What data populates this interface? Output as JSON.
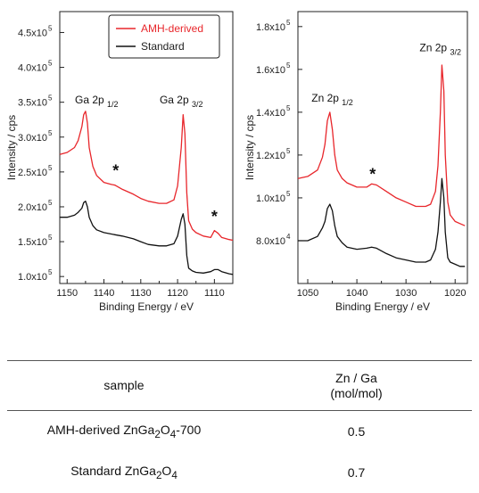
{
  "charts": [
    {
      "type": "line",
      "xlabel": "Binding Energy / eV",
      "ylabel": "Intensity / cps",
      "xlim": [
        1152,
        1105
      ],
      "ylim": [
        0.9,
        4.8
      ],
      "x_ticks": [
        1150,
        1140,
        1130,
        1120,
        1110
      ],
      "y_ticks": [
        1.0,
        1.5,
        2.0,
        2.5,
        3.0,
        3.5,
        4.0,
        4.5
      ],
      "y_tick_labels": [
        {
          "mant": "1.0x10",
          "exp": "5"
        },
        {
          "mant": "1.5x10",
          "exp": "5"
        },
        {
          "mant": "2.0x10",
          "exp": "5"
        },
        {
          "mant": "2.5x10",
          "exp": "5"
        },
        {
          "mant": "3.0x10",
          "exp": "5"
        },
        {
          "mant": "3.5x10",
          "exp": "5"
        },
        {
          "mant": "4.0x10",
          "exp": "5"
        },
        {
          "mant": "4.5x10",
          "exp": "5"
        }
      ],
      "y_scale_note": "y values in units of 1e5 cps",
      "legend": {
        "position": "top-center",
        "entries": [
          {
            "label": "AMH-derived",
            "color": "#e8262b"
          },
          {
            "label": "Standard",
            "color": "#111111"
          }
        ]
      },
      "series": [
        {
          "name": "AMH-derived",
          "color": "#e8262b",
          "x": [
            1152,
            1150,
            1148,
            1147,
            1146,
            1145.5,
            1145,
            1144.5,
            1144,
            1143,
            1142,
            1140,
            1138,
            1137,
            1135,
            1132,
            1130,
            1128,
            1125,
            1123,
            1121,
            1120,
            1119,
            1118.5,
            1118,
            1117.5,
            1117,
            1116,
            1115,
            1113,
            1111,
            1110,
            1109,
            1108,
            1106,
            1105
          ],
          "y": [
            2.75,
            2.78,
            2.85,
            2.95,
            3.15,
            3.32,
            3.37,
            3.2,
            2.85,
            2.58,
            2.45,
            2.35,
            2.32,
            2.31,
            2.25,
            2.18,
            2.12,
            2.08,
            2.05,
            2.05,
            2.1,
            2.3,
            2.85,
            3.32,
            3.05,
            2.2,
            1.8,
            1.68,
            1.63,
            1.58,
            1.56,
            1.66,
            1.62,
            1.56,
            1.53,
            1.52
          ]
        },
        {
          "name": "Standard",
          "color": "#111111",
          "x": [
            1152,
            1150,
            1148,
            1147,
            1146,
            1145.5,
            1145,
            1144.5,
            1144,
            1143,
            1142,
            1140,
            1138,
            1137,
            1135,
            1132,
            1130,
            1128,
            1125,
            1123,
            1121,
            1120,
            1119,
            1118.5,
            1118,
            1117.5,
            1117,
            1116,
            1115,
            1113,
            1111,
            1110,
            1109,
            1108,
            1106,
            1105
          ],
          "y": [
            1.85,
            1.85,
            1.88,
            1.92,
            1.98,
            2.06,
            2.08,
            2.0,
            1.85,
            1.73,
            1.67,
            1.63,
            1.61,
            1.6,
            1.58,
            1.54,
            1.5,
            1.46,
            1.44,
            1.44,
            1.47,
            1.58,
            1.82,
            1.9,
            1.75,
            1.3,
            1.12,
            1.08,
            1.06,
            1.05,
            1.07,
            1.1,
            1.1,
            1.07,
            1.04,
            1.03
          ]
        }
      ],
      "annotations": [
        {
          "text": "Ga 2p",
          "sub": "1/2",
          "x": 1142,
          "y": 3.48
        },
        {
          "text": "Ga 2p",
          "sub": "3/2",
          "x": 1119,
          "y": 3.48
        },
        {
          "text": "*",
          "x": 1136.8,
          "y": 2.44
        },
        {
          "text": "*",
          "x": 1110,
          "y": 1.78
        }
      ]
    },
    {
      "type": "line",
      "xlabel": "Binding Energy / eV",
      "ylabel": "Intensity / cps",
      "xlim": [
        1052,
        1017.5
      ],
      "ylim": [
        0.6,
        1.87
      ],
      "x_ticks": [
        1050,
        1040,
        1030,
        1020
      ],
      "y_ticks": [
        0.8,
        1.0,
        1.2,
        1.4,
        1.6,
        1.8
      ],
      "y_tick_labels": [
        {
          "mant": "8.0x10",
          "exp": "4"
        },
        {
          "mant": "1.0x10",
          "exp": "5"
        },
        {
          "mant": "1.2x10",
          "exp": "5"
        },
        {
          "mant": "1.4x10",
          "exp": "5"
        },
        {
          "mant": "1.6x10",
          "exp": "5"
        },
        {
          "mant": "1.8x10",
          "exp": "5"
        }
      ],
      "y_scale_note": "y values in units of 1e5 cps",
      "series": [
        {
          "name": "AMH-derived",
          "color": "#e8262b",
          "x": [
            1052,
            1050,
            1048,
            1047,
            1046.5,
            1046,
            1045.5,
            1045,
            1044.5,
            1044,
            1043,
            1042,
            1040,
            1038,
            1037,
            1036,
            1034,
            1032,
            1030,
            1028,
            1026,
            1025,
            1024,
            1023.5,
            1023,
            1022.7,
            1022.3,
            1022,
            1021.5,
            1021,
            1020,
            1019,
            1018
          ],
          "y": [
            1.09,
            1.1,
            1.13,
            1.19,
            1.25,
            1.36,
            1.4,
            1.32,
            1.2,
            1.13,
            1.09,
            1.07,
            1.05,
            1.05,
            1.065,
            1.06,
            1.03,
            1.0,
            0.98,
            0.96,
            0.96,
            0.97,
            1.03,
            1.15,
            1.4,
            1.62,
            1.5,
            1.2,
            0.98,
            0.92,
            0.89,
            0.88,
            0.87
          ]
        },
        {
          "name": "Standard",
          "color": "#111111",
          "x": [
            1052,
            1050,
            1048,
            1047,
            1046.5,
            1046,
            1045.5,
            1045,
            1044.5,
            1044,
            1043,
            1042,
            1040,
            1038,
            1037,
            1036,
            1034,
            1032,
            1030,
            1028,
            1026,
            1025,
            1024,
            1023.5,
            1023,
            1022.7,
            1022.3,
            1022,
            1021.5,
            1021,
            1020,
            1019,
            1018
          ],
          "y": [
            0.8,
            0.8,
            0.82,
            0.86,
            0.89,
            0.95,
            0.97,
            0.94,
            0.87,
            0.82,
            0.79,
            0.77,
            0.76,
            0.765,
            0.77,
            0.765,
            0.74,
            0.72,
            0.71,
            0.7,
            0.7,
            0.71,
            0.76,
            0.84,
            0.98,
            1.09,
            1.0,
            0.84,
            0.72,
            0.7,
            0.69,
            0.68,
            0.68
          ]
        }
      ],
      "annotations": [
        {
          "text": "Zn 2p",
          "sub": "1/2",
          "x": 1045,
          "y": 1.45
        },
        {
          "text": "Zn 2p",
          "sub": "3/2",
          "x": 1023,
          "y": 1.685
        },
        {
          "text": "*",
          "x": 1036.8,
          "y": 1.085
        }
      ]
    }
  ],
  "table": {
    "header_sample": "sample",
    "header_ratio_line1": "Zn / Ga",
    "header_ratio_line2": "(mol/mol)",
    "rows": [
      {
        "sample_pre": "AMH-derived ZnGa",
        "sub1": "2",
        "mid": "O",
        "sub2": "4",
        "post": "-700",
        "ratio": "0.5"
      },
      {
        "sample_pre": "Standard ZnGa",
        "sub1": "2",
        "mid": "O",
        "sub2": "4",
        "post": "",
        "ratio": "0.7"
      }
    ]
  }
}
